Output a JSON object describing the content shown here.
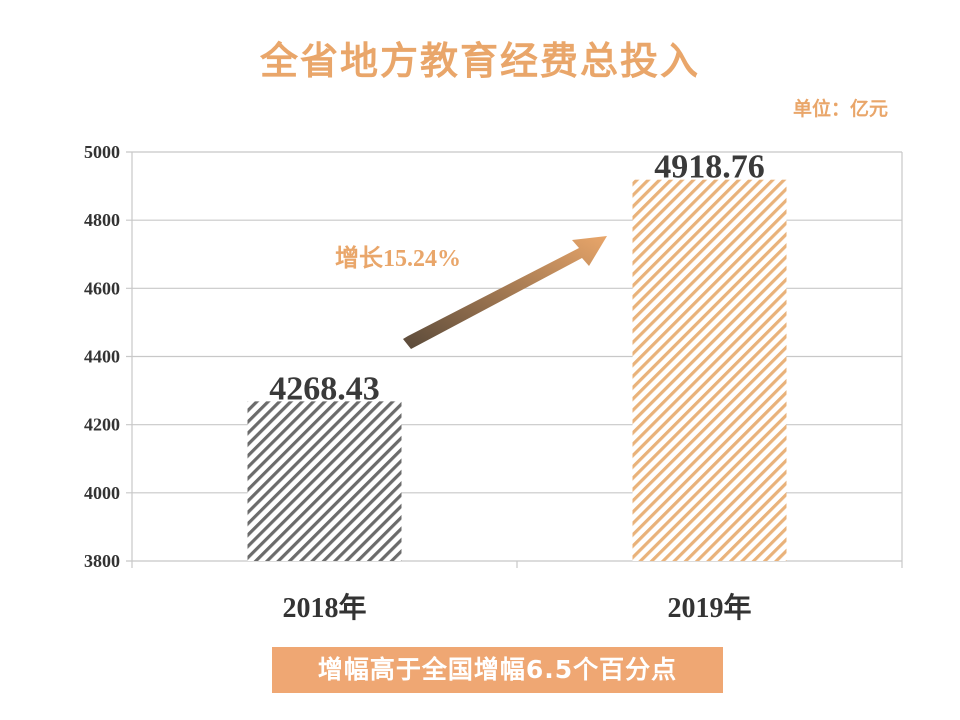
{
  "title": "全省地方教育经费总投入",
  "unit_label": "单位：亿元",
  "growth_label": "增长15.24%",
  "banner_text": "增幅高于全国增幅6.5个百分点",
  "colors": {
    "accent": "#E9A66A",
    "bar_2018": "#6b6b6b",
    "bar_2019": "#E9B27A",
    "banner_bg": "#EFA773",
    "grid": "#c8c8c8",
    "arrow_start": "#5a4a3a",
    "arrow_end": "#E9A66A"
  },
  "chart_data": {
    "type": "bar",
    "categories": [
      "2018年",
      "2019年"
    ],
    "values": [
      4268.43,
      4918.76
    ],
    "value_labels": [
      "4268.43",
      "4918.76"
    ],
    "title": "全省地方教育经费总投入",
    "xlabel": "",
    "ylabel": "",
    "ylim": [
      3800,
      5000
    ],
    "yticks": [
      3800,
      4000,
      4200,
      4400,
      4600,
      4800,
      5000
    ],
    "grid": true,
    "bar_fill": "diagonal-hatch"
  }
}
